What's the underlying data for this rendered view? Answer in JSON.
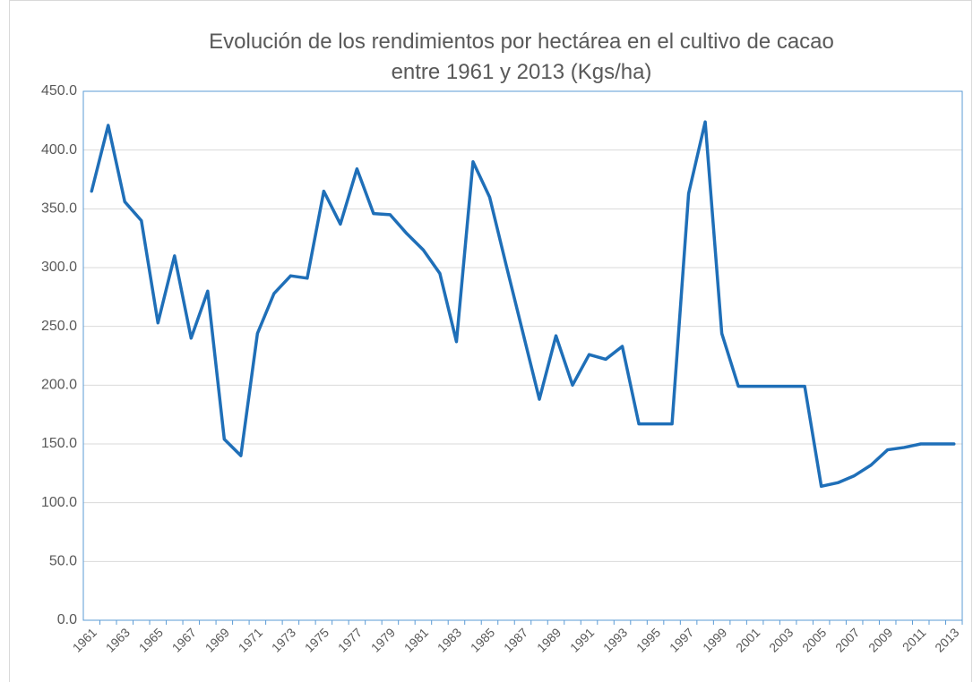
{
  "chart_data": {
    "type": "line",
    "title": [
      "Evolución de los rendimientos por hectárea en el cultivo de cacao",
      "entre 1961 y 2013 (Kgs/ha)"
    ],
    "categories": [
      "1961",
      null,
      "1963",
      null,
      "1965",
      null,
      "1967",
      null,
      "1969",
      null,
      "1971",
      null,
      "1973",
      null,
      "1975",
      null,
      "1977",
      null,
      "1979",
      null,
      "1981",
      null,
      "1983",
      null,
      "1985",
      null,
      "1987",
      null,
      "1989",
      null,
      "1991",
      null,
      "1993",
      null,
      "1995",
      null,
      "1997",
      null,
      "1999",
      null,
      "2001",
      null,
      "2003",
      null,
      "2005",
      null,
      "2007",
      null,
      "2009",
      null,
      "2011",
      null,
      "2013"
    ],
    "series": [
      {
        "color": "#1f6fb8",
        "values": [
          365,
          421,
          356,
          340,
          253,
          310,
          240,
          280,
          154,
          140,
          244,
          278,
          293,
          291,
          365,
          337,
          384,
          346,
          345,
          329,
          315,
          295,
          237,
          390,
          360,
          302,
          245,
          188,
          242,
          200,
          226,
          222,
          233,
          167,
          167,
          167,
          363,
          424,
          244,
          199,
          199,
          199,
          199,
          199,
          114,
          117,
          123,
          132,
          145,
          147,
          150,
          150,
          150
        ]
      }
    ],
    "ylim": [
      0,
      450
    ],
    "yticks": [
      {
        "value": 0,
        "label": "0.0"
      },
      {
        "value": 50,
        "label": "50.0"
      },
      {
        "value": 100,
        "label": "100.0"
      },
      {
        "value": 150,
        "label": "150.0"
      },
      {
        "value": 200,
        "label": "200.0"
      },
      {
        "value": 250,
        "label": "250.0"
      },
      {
        "value": 300,
        "label": "300.0"
      },
      {
        "value": 350,
        "label": "350.0"
      },
      {
        "value": 400,
        "label": "400.0"
      },
      {
        "value": 450,
        "label": "450.0"
      }
    ],
    "grid": true
  }
}
